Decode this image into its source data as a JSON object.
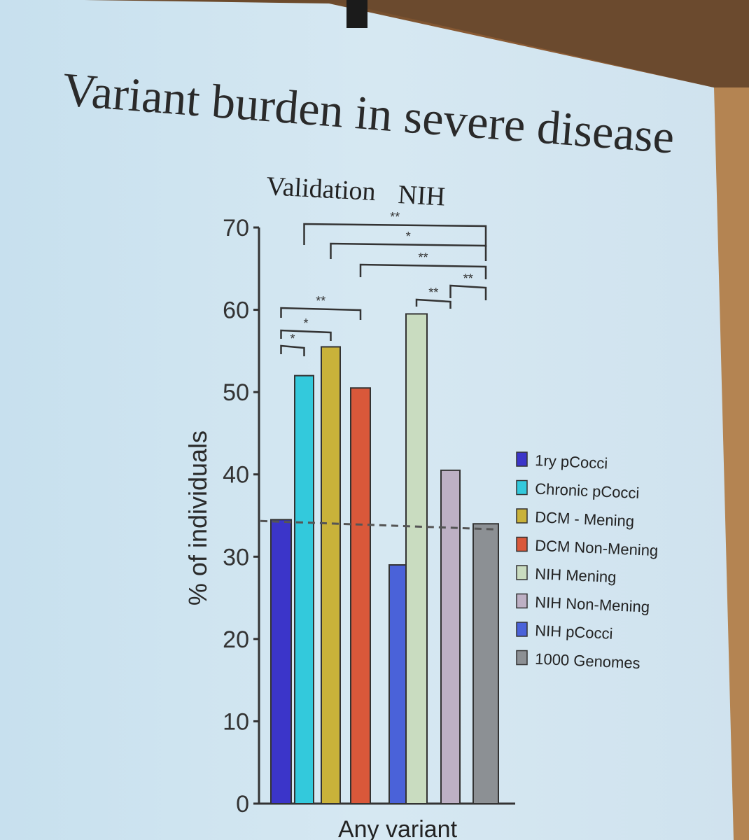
{
  "slide": {
    "title": "Variant burden in severe disease",
    "group_label_validation": "Validation",
    "group_label_nih": "NIH"
  },
  "chart_data": {
    "type": "bar",
    "xlabel": "Any variant",
    "ylabel": "% of individuals",
    "ylim": [
      0,
      70
    ],
    "yticks": [
      0,
      10,
      20,
      30,
      40,
      50,
      60,
      70
    ],
    "categories": [
      "Any variant"
    ],
    "series": [
      {
        "name": "1ry pCocci",
        "value": 34.5,
        "color": "#3b35c9"
      },
      {
        "name": "Chronic pCocci",
        "value": 52,
        "color": "#33c9dc"
      },
      {
        "name": "DCM - Mening",
        "value": 55.5,
        "color": "#c9b23a"
      },
      {
        "name": "DCM Non-Mening",
        "value": 50.5,
        "color": "#d9583a"
      },
      {
        "name": "NIH Mening",
        "value": 59.5,
        "color": "#c9dcc0"
      },
      {
        "name": "NIH Non-Mening",
        "value": 40.5,
        "color": "#bdb0c4"
      },
      {
        "name": "NIH pCocci",
        "value": 29,
        "color": "#4a62d9"
      },
      {
        "name": "1000 Genomes",
        "value": 34,
        "color": "#8c9094"
      }
    ],
    "reference_line": 34,
    "significance": [
      {
        "from": 0,
        "to": 1,
        "label": "*"
      },
      {
        "from": 0,
        "to": 2,
        "label": "*"
      },
      {
        "from": 0,
        "to": 3,
        "label": "**"
      },
      {
        "from": 1,
        "to": 7,
        "label": "**"
      },
      {
        "from": 2,
        "to": 7,
        "label": "*"
      },
      {
        "from": 3,
        "to": 7,
        "label": "**"
      },
      {
        "from": 4,
        "to": 5,
        "label": "**"
      },
      {
        "from": 5,
        "to": 7,
        "label": "**"
      }
    ]
  }
}
